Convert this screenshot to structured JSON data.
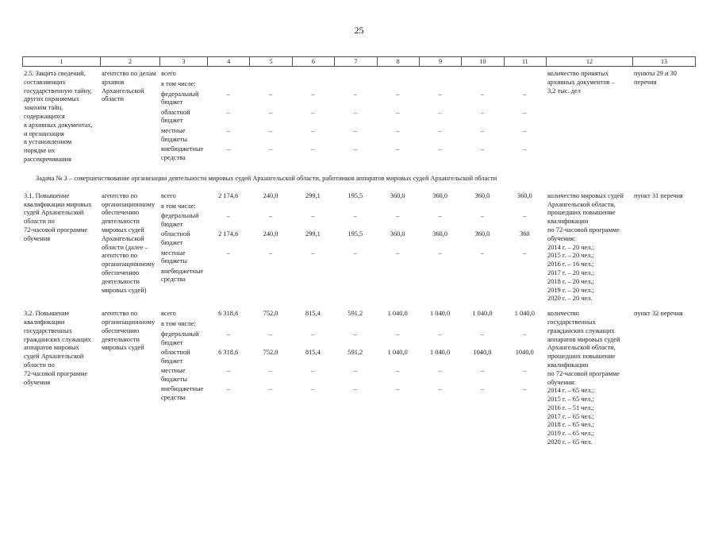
{
  "page_number": "25",
  "table": {
    "header_cols": [
      "1",
      "2",
      "3",
      "4",
      "5",
      "6",
      "7",
      "8",
      "9",
      "10",
      "11",
      "12",
      "13"
    ],
    "rows": [
      {
        "heading_above": "",
        "activity": "2.5. Защита сведений,\nсоставляющих\nгосударственную тайну,\nдругих охраняемых\nзаконом тайн,\nсодержащихся\nв архивных документах,\nи организация\nв установленном\nпорядке их\nрассекречивания",
        "executor": "агентство по делам\nархивов\nАрхангельской\nобласти",
        "finance": [
          {
            "label": "всего",
            "values": [
              "",
              "",
              "",
              "",
              "",
              "",
              "",
              ""
            ]
          },
          {
            "label": "в том числе:",
            "note": true
          },
          {
            "label": "федеральный\nбюджет",
            "values": [
              "–",
              "–",
              "–",
              "–",
              "–",
              "–",
              "–",
              "–"
            ]
          },
          {
            "label": "областной\nбюджет",
            "values": [
              "–",
              "–",
              "–",
              "–",
              "–",
              "–",
              "–",
              "–"
            ]
          },
          {
            "label": "местные\nбюджеты",
            "values": [
              "–",
              "–",
              "–",
              "–",
              "–",
              "–",
              "–",
              "–"
            ]
          },
          {
            "label": "внебюджетные\nсредства",
            "values": [
              "–",
              "–",
              "–",
              "–",
              "–",
              "–",
              "–",
              "–"
            ]
          }
        ],
        "result": "количество принятых\nархивных документов –\n3,2 тыс. дел",
        "ref": "пункты 29 и 30\nперечня"
      },
      {
        "heading_above": "Задача № 3 – совершенствование организации деятельности мировых судей Архангельской области, работников аппаратов мировых судей Архангельской области",
        "activity": "3.1. Повышение\nквалификации мировых\nсудей Архангельской\nобласти по\n72-часовой программе\nобучения",
        "executor": "агентство по\nорганизационному\nобеспечению\nдеятельности\nмировых судей\nАрхангельской\nобласти (далее –\nагентство по\nорганизационному\nобеспечению\nдеятельности\nмировых судей)",
        "finance": [
          {
            "label": "всего",
            "values": [
              "2 174,6",
              "240,0",
              "299,1",
              "195,5",
              "360,0",
              "360,0",
              "360,0",
              "360,0"
            ]
          },
          {
            "label": "в том числе:",
            "note": true
          },
          {
            "label": "федеральный\nбюджет",
            "values": [
              "–",
              "–",
              "–",
              "–",
              "–",
              "–",
              "–",
              "–"
            ]
          },
          {
            "label": "областной\nбюджет",
            "values": [
              "2 174,6",
              "240,0",
              "299,1",
              "195,5",
              "360,0",
              "360,0",
              "360,0",
              "360"
            ]
          },
          {
            "label": "местные\nбюджеты",
            "values": [
              "–",
              "–",
              "–",
              "–",
              "–",
              "–",
              "–",
              "–"
            ]
          },
          {
            "label": "внебюджетные\nсредства",
            "values": [
              "",
              "",
              "",
              "",
              "",
              "",
              "",
              ""
            ]
          }
        ],
        "result": "количество мировых судей\nАрхангельской области,\nпрошедших повышение\nквалификации\nпо 72-часовой программе\nобучения:\n2014 г. – 20 чел.;\n2015 г. – 20 чел.;\n2016 г. – 16 чел.;\n2017 г. – 20 чел.;\n2018 г. – 20 чел.;\n2019 г. – 20 чел.;\n2020 г. – 20 чел.",
        "ref": "пункт 31 перечня"
      },
      {
        "heading_above": "",
        "activity": "3.2. Повышение\nквалификации\nгосударственных\nгражданских служащих\nаппаратов мировых\nсудей Архангельской\nобласти по\n72-часовой программе\nобучения",
        "executor": "агентство по\nорганизационному\nобеспечению\nдеятельности\nмировых судей",
        "finance": [
          {
            "label": "всего",
            "values": [
              "6 318,6",
              "752,0",
              "815,4",
              "591,2",
              "1 040,0",
              "1 040,0",
              "1 040,0",
              "1 040,0"
            ]
          },
          {
            "label": "в том числе:",
            "note": true
          },
          {
            "label": "федеральный\nбюджет",
            "values": [
              "–",
              "–",
              "–",
              "–",
              "–",
              "–",
              "–",
              "–"
            ]
          },
          {
            "label": "областной\nбюджет",
            "values": [
              "6 318,6",
              "752,0",
              "815,4",
              "591,2",
              "1 040,0",
              "1 040,0",
              "1040,0",
              "1040,0"
            ]
          },
          {
            "label": "местные\nбюджеты",
            "values": [
              "–",
              "–",
              "–",
              "–",
              "–",
              "–",
              "–",
              "–"
            ]
          },
          {
            "label": "внебюджетные\nсредства",
            "values": [
              "–",
              "–",
              "–",
              "–",
              "–",
              "–",
              "–",
              "–"
            ]
          }
        ],
        "result": "количество\nгосударственных\nгражданских служащих\nаппаратов мировых судей\nАрхангельской области,\nпрошедших повышение\nквалификации\nпо 72-часовой программе\nобучения:\n2014 г. – 65 чел.;\n2015 г. – 65 чел.;\n2016 г. – 51 чел.;\n2017 г. – 65 чел.;\n2018 г. – 65 чел.;\n2019 г. – 65 чел.;\n2020 г. – 65 чел.",
        "ref": "пункт 32 перечня"
      }
    ]
  }
}
